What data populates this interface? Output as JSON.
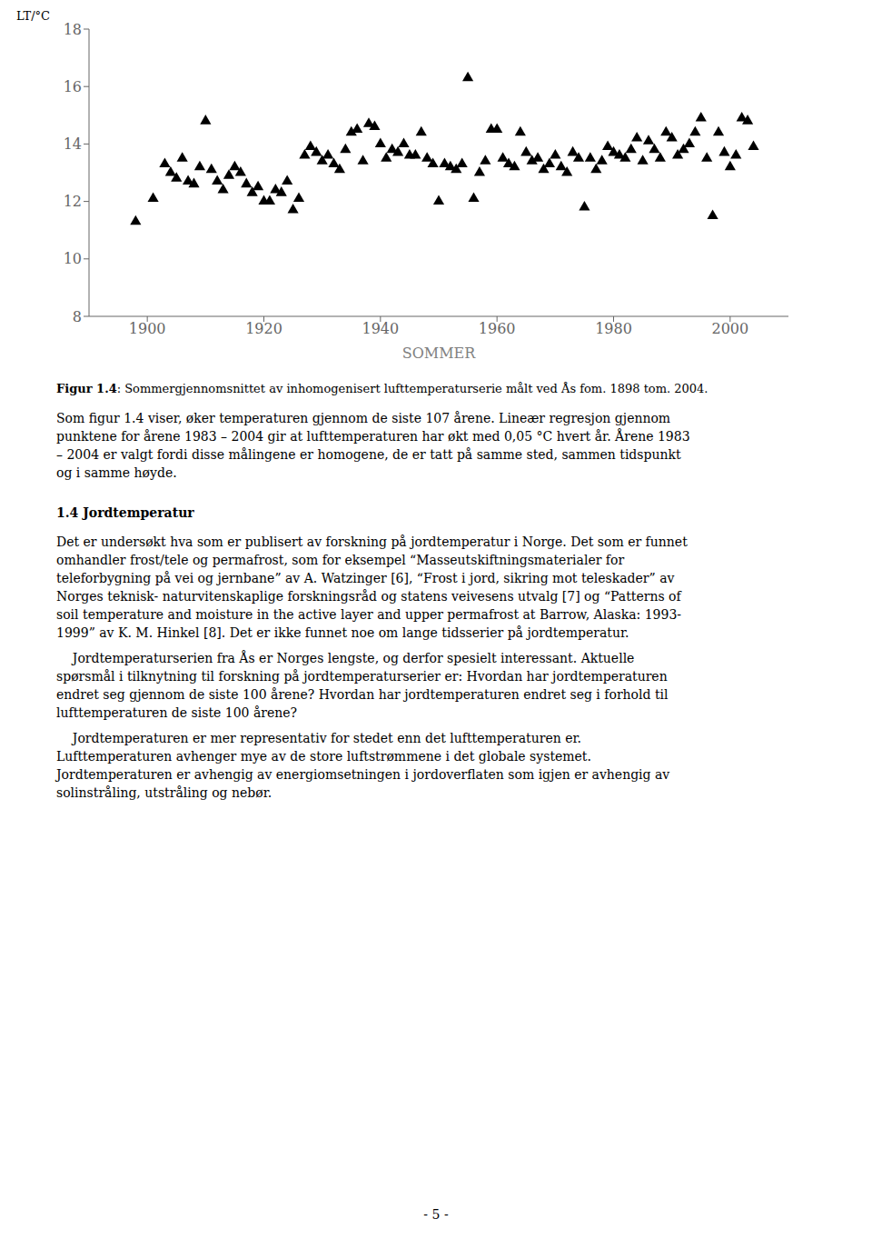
{
  "chart_data": {
    "type": "scatter",
    "x_label": "SOMMER",
    "y_label": "LT/°C",
    "x": [
      1898,
      1901,
      1903,
      1904,
      1905,
      1906,
      1907,
      1908,
      1909,
      1910,
      1911,
      1912,
      1913,
      1914,
      1915,
      1916,
      1917,
      1918,
      1919,
      1920,
      1921,
      1922,
      1923,
      1924,
      1925,
      1926,
      1927,
      1928,
      1929,
      1930,
      1931,
      1932,
      1933,
      1934,
      1935,
      1936,
      1937,
      1938,
      1939,
      1940,
      1941,
      1942,
      1943,
      1944,
      1945,
      1946,
      1947,
      1948,
      1949,
      1950,
      1951,
      1952,
      1953,
      1954,
      1955,
      1956,
      1957,
      1958,
      1959,
      1960,
      1961,
      1962,
      1963,
      1964,
      1965,
      1966,
      1967,
      1968,
      1969,
      1970,
      1971,
      1972,
      1973,
      1974,
      1975,
      1976,
      1977,
      1978,
      1979,
      1980,
      1981,
      1982,
      1983,
      1984,
      1985,
      1986,
      1987,
      1988,
      1989,
      1990,
      1991,
      1992,
      1993,
      1994,
      1995,
      1996,
      1997,
      1998,
      1999,
      2000,
      2001,
      2002,
      2003,
      2004
    ],
    "values": [
      11.3,
      12.1,
      13.3,
      13.0,
      12.8,
      13.5,
      12.7,
      12.6,
      13.2,
      14.8,
      13.1,
      12.7,
      12.4,
      12.9,
      13.2,
      13.0,
      12.6,
      12.3,
      12.5,
      12.0,
      12.0,
      12.4,
      12.3,
      12.7,
      11.7,
      12.1,
      13.6,
      13.9,
      13.7,
      13.4,
      13.6,
      13.3,
      13.1,
      13.8,
      14.4,
      14.5,
      13.4,
      14.7,
      14.6,
      14.0,
      13.5,
      13.8,
      13.7,
      14.0,
      13.6,
      13.6,
      14.4,
      13.5,
      13.3,
      12.0,
      13.3,
      13.2,
      13.1,
      13.3,
      16.3,
      12.1,
      13.0,
      13.4,
      14.5,
      14.5,
      13.5,
      13.3,
      13.2,
      14.4,
      13.7,
      13.4,
      13.5,
      13.1,
      13.3,
      13.6,
      13.2,
      13.0,
      13.7,
      13.5,
      11.8,
      13.5,
      13.1,
      13.4,
      13.9,
      13.7,
      13.6,
      13.5,
      13.8,
      14.2,
      13.4,
      14.1,
      13.8,
      13.5,
      14.4,
      14.2,
      13.6,
      13.8,
      14.0,
      14.4,
      14.9,
      13.5,
      11.5,
      14.4,
      13.7,
      13.2,
      13.6,
      14.9,
      14.8,
      13.9
    ],
    "color": "#000000",
    "marker": "triangle",
    "xlim": [
      1890,
      2010
    ],
    "ylim": [
      8,
      18
    ],
    "xticks": [
      1900,
      1920,
      1940,
      1960,
      1980,
      2000
    ],
    "yticks": [
      8,
      10,
      12,
      14,
      16,
      18
    ],
    "grid": false,
    "annotations": [
      [
        "Figur 1.4",
        ": Sommergjennomsnittet av inhomogenisert lufttemperaturserie målt ved Ås fom. 1898 tom. 2004."
      ],
      [
        "Som figur 1.4 viser, øker temperaturen gjennom de siste 107 årene. Lineær regresjon gjennom",
        "punktene for årene 1983 – 2004 gir at lufttemperaturen har økt med 0,05 °C hvert år. Årene 1983",
        "– 2004 er valgt fordi disse målingene er homogene, de er tatt på samme sted, sammen tidspunkt",
        "og i samme høyde."
      ],
      [
        "1.4 Jordtemperatur"
      ],
      [
        "Det er undersøkt hva som er publisert av forskning på jordtemperatur i Norge. Det som er funnet",
        "omhandler frost/tele og permafrost, som for eksempel “Masseutskiftningsmaterialer for",
        "teleforbygning på vei og jernbane” av A. Watzinger [6], “Frost i jord, sikring mot teleskader” av",
        "Norges teknisk- naturvitenskaplige forskningsråd og statens veivesens utvalg [7] og “Patterns of",
        "soil temperature and moisture in the active layer and upper permafrost at Barrow, Alaska: 1993-",
        "1999” av K. M. Hinkel [8]. Det er ikke funnet noe om lange tidsserier på jordtemperatur."
      ],
      [
        "    Jordtemperaturserien fra Ås er Norges lengste, og derfor spesielt interessant. Aktuelle",
        "spørsmål i tilknytning til forskning på jordtemperaturserier er: Hvordan har jordtemperaturen",
        "endret seg gjennom de siste 100 årene? Hvordan har jordtemperaturen endret seg i forhold til",
        "lufttemperaturen de siste 100 årene?"
      ],
      [
        "    Jordtemperaturen er mer representativ for stedet enn det lufttemperaturen er.",
        "Lufttemperaturen avhenger mye av de store luftstrømmene i det globale systemet.",
        "Jordtemperaturen er avhengig av energiomsetningen i jordoverflaten som igjen er avhengig av",
        "solinstråling, utstråling og nebør."
      ],
      [
        "- 5 -"
      ]
    ]
  }
}
